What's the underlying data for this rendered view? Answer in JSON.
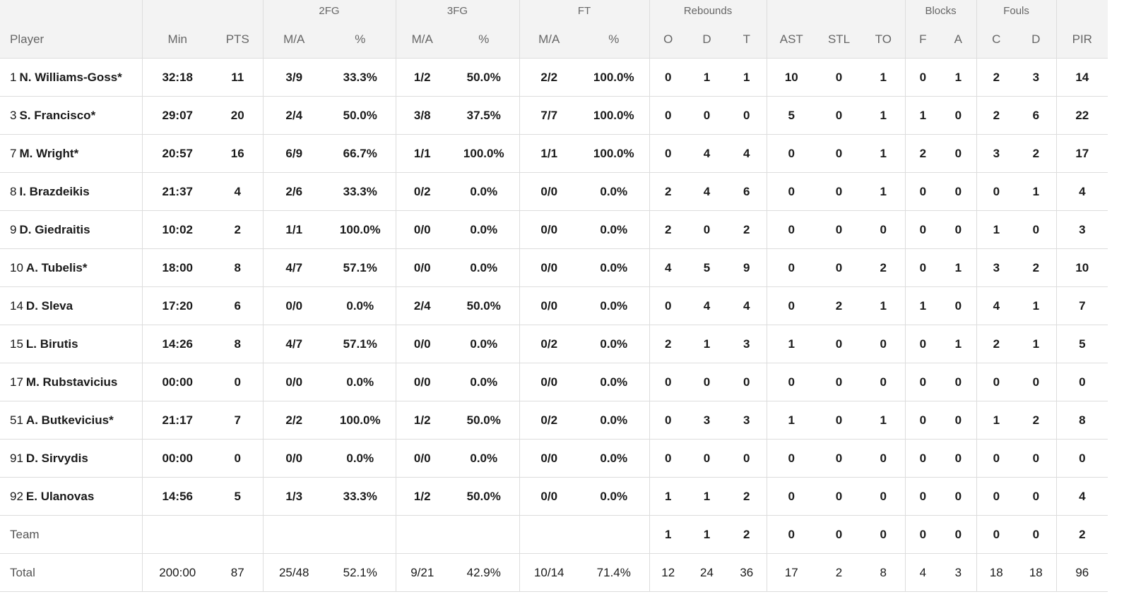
{
  "header": {
    "groups": {
      "fg2": "2FG",
      "fg3": "3FG",
      "ft": "FT",
      "rebounds": "Rebounds",
      "blocks": "Blocks",
      "fouls": "Fouls"
    },
    "columns": {
      "player": "Player",
      "min": "Min",
      "pts": "PTS",
      "fg2_ma": "M/A",
      "fg2_pct": "%",
      "fg3_ma": "M/A",
      "fg3_pct": "%",
      "ft_ma": "M/A",
      "ft_pct": "%",
      "reb_o": "O",
      "reb_d": "D",
      "reb_t": "T",
      "ast": "AST",
      "stl": "STL",
      "to": "TO",
      "blk_f": "F",
      "blk_a": "A",
      "fouls_c": "C",
      "fouls_d": "D",
      "pir": "PIR"
    }
  },
  "rows": [
    {
      "num": "1",
      "name": "N. Williams-Goss*",
      "min": "32:18",
      "pts": "11",
      "fg2_ma": "3/9",
      "fg2_pct": "33.3%",
      "fg3_ma": "1/2",
      "fg3_pct": "50.0%",
      "ft_ma": "2/2",
      "ft_pct": "100.0%",
      "reb_o": "0",
      "reb_d": "1",
      "reb_t": "1",
      "ast": "10",
      "stl": "0",
      "to": "1",
      "blk_f": "0",
      "blk_a": "1",
      "fouls_c": "2",
      "fouls_d": "3",
      "pir": "14"
    },
    {
      "num": "3",
      "name": "S. Francisco*",
      "min": "29:07",
      "pts": "20",
      "fg2_ma": "2/4",
      "fg2_pct": "50.0%",
      "fg3_ma": "3/8",
      "fg3_pct": "37.5%",
      "ft_ma": "7/7",
      "ft_pct": "100.0%",
      "reb_o": "0",
      "reb_d": "0",
      "reb_t": "0",
      "ast": "5",
      "stl": "0",
      "to": "1",
      "blk_f": "1",
      "blk_a": "0",
      "fouls_c": "2",
      "fouls_d": "6",
      "pir": "22"
    },
    {
      "num": "7",
      "name": "M. Wright*",
      "min": "20:57",
      "pts": "16",
      "fg2_ma": "6/9",
      "fg2_pct": "66.7%",
      "fg3_ma": "1/1",
      "fg3_pct": "100.0%",
      "ft_ma": "1/1",
      "ft_pct": "100.0%",
      "reb_o": "0",
      "reb_d": "4",
      "reb_t": "4",
      "ast": "0",
      "stl": "0",
      "to": "1",
      "blk_f": "2",
      "blk_a": "0",
      "fouls_c": "3",
      "fouls_d": "2",
      "pir": "17"
    },
    {
      "num": "8",
      "name": "I. Brazdeikis",
      "min": "21:37",
      "pts": "4",
      "fg2_ma": "2/6",
      "fg2_pct": "33.3%",
      "fg3_ma": "0/2",
      "fg3_pct": "0.0%",
      "ft_ma": "0/0",
      "ft_pct": "0.0%",
      "reb_o": "2",
      "reb_d": "4",
      "reb_t": "6",
      "ast": "0",
      "stl": "0",
      "to": "1",
      "blk_f": "0",
      "blk_a": "0",
      "fouls_c": "0",
      "fouls_d": "1",
      "pir": "4"
    },
    {
      "num": "9",
      "name": "D. Giedraitis",
      "min": "10:02",
      "pts": "2",
      "fg2_ma": "1/1",
      "fg2_pct": "100.0%",
      "fg3_ma": "0/0",
      "fg3_pct": "0.0%",
      "ft_ma": "0/0",
      "ft_pct": "0.0%",
      "reb_o": "2",
      "reb_d": "0",
      "reb_t": "2",
      "ast": "0",
      "stl": "0",
      "to": "0",
      "blk_f": "0",
      "blk_a": "0",
      "fouls_c": "1",
      "fouls_d": "0",
      "pir": "3"
    },
    {
      "num": "10",
      "name": "A. Tubelis*",
      "min": "18:00",
      "pts": "8",
      "fg2_ma": "4/7",
      "fg2_pct": "57.1%",
      "fg3_ma": "0/0",
      "fg3_pct": "0.0%",
      "ft_ma": "0/0",
      "ft_pct": "0.0%",
      "reb_o": "4",
      "reb_d": "5",
      "reb_t": "9",
      "ast": "0",
      "stl": "0",
      "to": "2",
      "blk_f": "0",
      "blk_a": "1",
      "fouls_c": "3",
      "fouls_d": "2",
      "pir": "10"
    },
    {
      "num": "14",
      "name": "D. Sleva",
      "min": "17:20",
      "pts": "6",
      "fg2_ma": "0/0",
      "fg2_pct": "0.0%",
      "fg3_ma": "2/4",
      "fg3_pct": "50.0%",
      "ft_ma": "0/0",
      "ft_pct": "0.0%",
      "reb_o": "0",
      "reb_d": "4",
      "reb_t": "4",
      "ast": "0",
      "stl": "2",
      "to": "1",
      "blk_f": "1",
      "blk_a": "0",
      "fouls_c": "4",
      "fouls_d": "1",
      "pir": "7"
    },
    {
      "num": "15",
      "name": "L. Birutis",
      "min": "14:26",
      "pts": "8",
      "fg2_ma": "4/7",
      "fg2_pct": "57.1%",
      "fg3_ma": "0/0",
      "fg3_pct": "0.0%",
      "ft_ma": "0/2",
      "ft_pct": "0.0%",
      "reb_o": "2",
      "reb_d": "1",
      "reb_t": "3",
      "ast": "1",
      "stl": "0",
      "to": "0",
      "blk_f": "0",
      "blk_a": "1",
      "fouls_c": "2",
      "fouls_d": "1",
      "pir": "5"
    },
    {
      "num": "17",
      "name": "M. Rubstavicius",
      "min": "00:00",
      "pts": "0",
      "fg2_ma": "0/0",
      "fg2_pct": "0.0%",
      "fg3_ma": "0/0",
      "fg3_pct": "0.0%",
      "ft_ma": "0/0",
      "ft_pct": "0.0%",
      "reb_o": "0",
      "reb_d": "0",
      "reb_t": "0",
      "ast": "0",
      "stl": "0",
      "to": "0",
      "blk_f": "0",
      "blk_a": "0",
      "fouls_c": "0",
      "fouls_d": "0",
      "pir": "0"
    },
    {
      "num": "51",
      "name": "A. Butkevicius*",
      "min": "21:17",
      "pts": "7",
      "fg2_ma": "2/2",
      "fg2_pct": "100.0%",
      "fg3_ma": "1/2",
      "fg3_pct": "50.0%",
      "ft_ma": "0/2",
      "ft_pct": "0.0%",
      "reb_o": "0",
      "reb_d": "3",
      "reb_t": "3",
      "ast": "1",
      "stl": "0",
      "to": "1",
      "blk_f": "0",
      "blk_a": "0",
      "fouls_c": "1",
      "fouls_d": "2",
      "pir": "8"
    },
    {
      "num": "91",
      "name": "D. Sirvydis",
      "min": "00:00",
      "pts": "0",
      "fg2_ma": "0/0",
      "fg2_pct": "0.0%",
      "fg3_ma": "0/0",
      "fg3_pct": "0.0%",
      "ft_ma": "0/0",
      "ft_pct": "0.0%",
      "reb_o": "0",
      "reb_d": "0",
      "reb_t": "0",
      "ast": "0",
      "stl": "0",
      "to": "0",
      "blk_f": "0",
      "blk_a": "0",
      "fouls_c": "0",
      "fouls_d": "0",
      "pir": "0"
    },
    {
      "num": "92",
      "name": "E. Ulanovas",
      "min": "14:56",
      "pts": "5",
      "fg2_ma": "1/3",
      "fg2_pct": "33.3%",
      "fg3_ma": "1/2",
      "fg3_pct": "50.0%",
      "ft_ma": "0/0",
      "ft_pct": "0.0%",
      "reb_o": "1",
      "reb_d": "1",
      "reb_t": "2",
      "ast": "0",
      "stl": "0",
      "to": "0",
      "blk_f": "0",
      "blk_a": "0",
      "fouls_c": "0",
      "fouls_d": "0",
      "pir": "4"
    }
  ],
  "team": {
    "label": "Team",
    "reb_o": "1",
    "reb_d": "1",
    "reb_t": "2",
    "ast": "0",
    "stl": "0",
    "to": "0",
    "blk_f": "0",
    "blk_a": "0",
    "fouls_c": "0",
    "fouls_d": "0",
    "pir": "2"
  },
  "total": {
    "label": "Total",
    "min": "200:00",
    "pts": "87",
    "fg2_ma": "25/48",
    "fg2_pct": "52.1%",
    "fg3_ma": "9/21",
    "fg3_pct": "42.9%",
    "ft_ma": "10/14",
    "ft_pct": "71.4%",
    "reb_o": "12",
    "reb_d": "24",
    "reb_t": "36",
    "ast": "17",
    "stl": "2",
    "to": "8",
    "blk_f": "4",
    "blk_a": "3",
    "fouls_c": "18",
    "fouls_d": "18",
    "pir": "96"
  }
}
